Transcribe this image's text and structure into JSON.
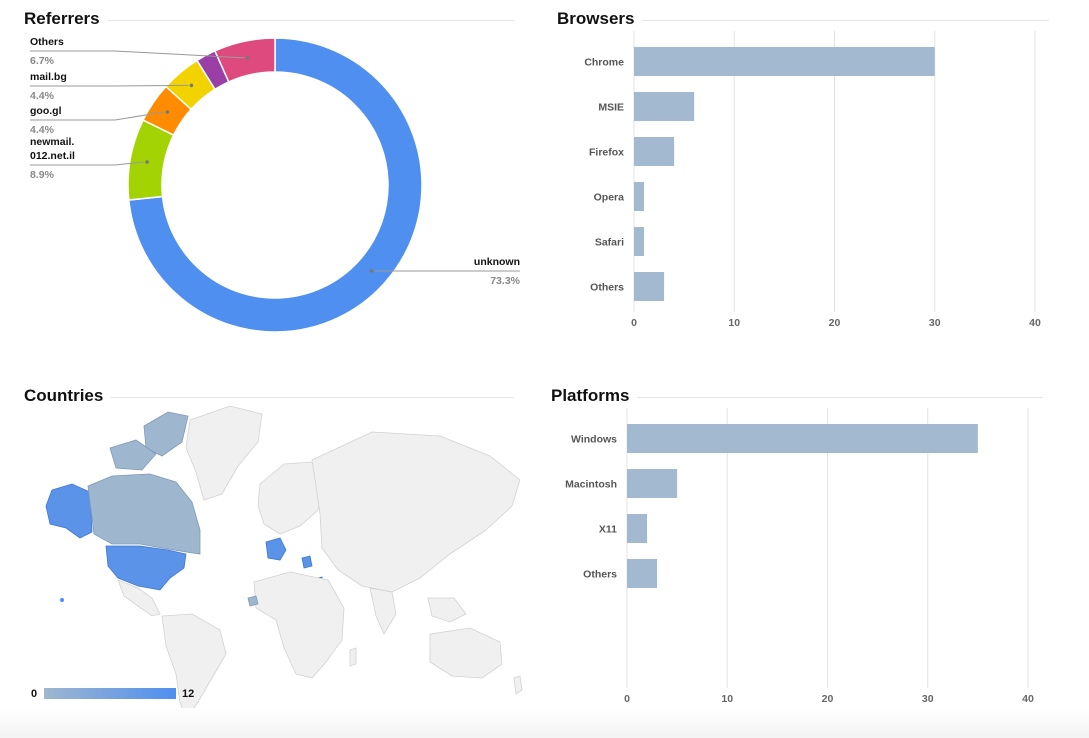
{
  "colors": {
    "unknown": "#4f8ff0",
    "newmail": "#a4d304",
    "googl": "#ff8c00",
    "mailbg": "#f2d300",
    "others_ref": "#993fa6",
    "pink": "#df4a7e",
    "bar": "#a3b9cf",
    "grid": "#e3e3e3",
    "map_land": "#f0f0f0",
    "map_low": "#9fb6cf",
    "map_high": "#4f8ff0"
  },
  "referrers": {
    "title": "Referrers",
    "labels": [
      {
        "name_lines": [
          "Others"
        ],
        "value": "6.7%"
      },
      {
        "name_lines": [
          "mail.bg"
        ],
        "value": "4.4%"
      },
      {
        "name_lines": [
          "goo.gl"
        ],
        "value": "4.4%"
      },
      {
        "name_lines": [
          "newmail.",
          "012.net.il"
        ],
        "value": "8.9%"
      },
      {
        "name_lines": [
          "unknown"
        ],
        "value": "73.3%"
      }
    ]
  },
  "browsers": {
    "title": "Browsers"
  },
  "countries": {
    "title": "Countries",
    "legend_min": "0",
    "legend_max": "12"
  },
  "platforms": {
    "title": "Platforms"
  },
  "chart_data": [
    {
      "type": "pie",
      "title": "Referrers",
      "donut": true,
      "series": [
        {
          "name": "unknown",
          "value": 73.3,
          "color": "#4f8ff0"
        },
        {
          "name": "newmail.012.net.il",
          "value": 8.9,
          "color": "#a4d304"
        },
        {
          "name": "goo.gl",
          "value": 4.4,
          "color": "#ff8c00"
        },
        {
          "name": "mail.bg",
          "value": 4.4,
          "color": "#f2d300"
        },
        {
          "name": "",
          "value": 2.2,
          "color": "#993fa6"
        },
        {
          "name": "Others",
          "value": 6.7,
          "color": "#df4a7e"
        }
      ]
    },
    {
      "type": "bar",
      "orientation": "horizontal",
      "title": "Browsers",
      "categories": [
        "Chrome",
        "MSIE",
        "Firefox",
        "Opera",
        "Safari",
        "Others"
      ],
      "values": [
        30,
        6,
        4,
        1,
        1,
        3
      ],
      "xlim": [
        0,
        40
      ],
      "ticks": [
        0,
        10,
        20,
        30,
        40
      ],
      "grid": true
    },
    {
      "type": "bar",
      "orientation": "horizontal",
      "title": "Platforms",
      "categories": [
        "Windows",
        "Macintosh",
        "X11",
        "Others"
      ],
      "values": [
        35,
        5,
        2,
        3
      ],
      "xlim": [
        0,
        40
      ],
      "ticks": [
        0,
        10,
        20,
        30,
        40
      ],
      "grid": true
    }
  ]
}
